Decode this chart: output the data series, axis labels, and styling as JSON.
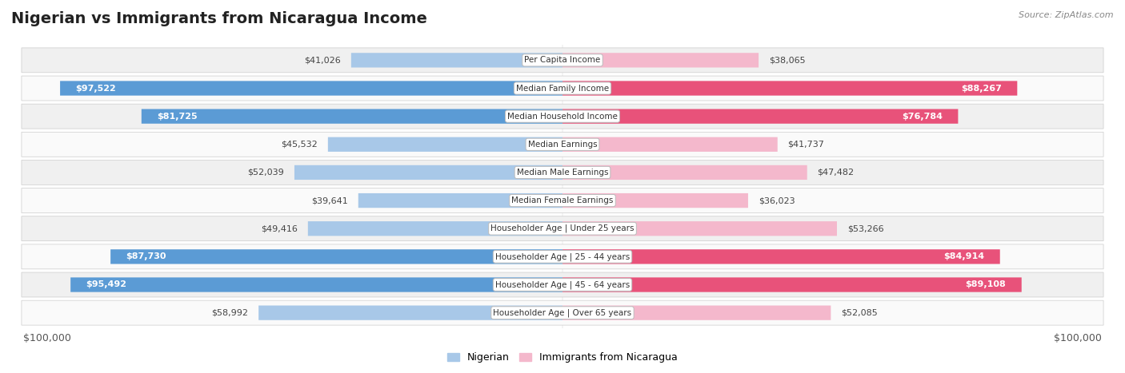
{
  "title": "Nigerian vs Immigrants from Nicaragua Income",
  "source": "Source: ZipAtlas.com",
  "categories": [
    "Per Capita Income",
    "Median Family Income",
    "Median Household Income",
    "Median Earnings",
    "Median Male Earnings",
    "Median Female Earnings",
    "Householder Age | Under 25 years",
    "Householder Age | 25 - 44 years",
    "Householder Age | 45 - 64 years",
    "Householder Age | Over 65 years"
  ],
  "nigerian_values": [
    41026,
    97522,
    81725,
    45532,
    52039,
    39641,
    49416,
    87730,
    95492,
    58992
  ],
  "nicaragua_values": [
    38065,
    88267,
    76784,
    41737,
    47482,
    36023,
    53266,
    84914,
    89108,
    52085
  ],
  "nigerian_labels": [
    "$41,026",
    "$97,522",
    "$81,725",
    "$45,532",
    "$52,039",
    "$39,641",
    "$49,416",
    "$87,730",
    "$95,492",
    "$58,992"
  ],
  "nicaragua_labels": [
    "$38,065",
    "$88,267",
    "$76,784",
    "$41,737",
    "$47,482",
    "$36,023",
    "$53,266",
    "$84,914",
    "$89,108",
    "$52,085"
  ],
  "max_value": 100000,
  "nigerian_color_light": "#a8c8e8",
  "nigerian_color_dark": "#5b9bd5",
  "nicaragua_color_light": "#f4b8cc",
  "nicaragua_color_dark": "#e8527a",
  "nigerian_threshold": 70000,
  "nicaragua_threshold": 70000,
  "row_bg_even": "#f0f0f0",
  "row_bg_odd": "#fafafa",
  "bar_height": 0.52,
  "xlabel_left": "$100,000",
  "xlabel_right": "$100,000",
  "legend_nigerian": "Nigerian",
  "legend_nicaragua": "Immigrants from Nicaragua",
  "title_fontsize": 14,
  "label_fontsize": 8,
  "cat_fontsize": 7.5,
  "source_fontsize": 8
}
